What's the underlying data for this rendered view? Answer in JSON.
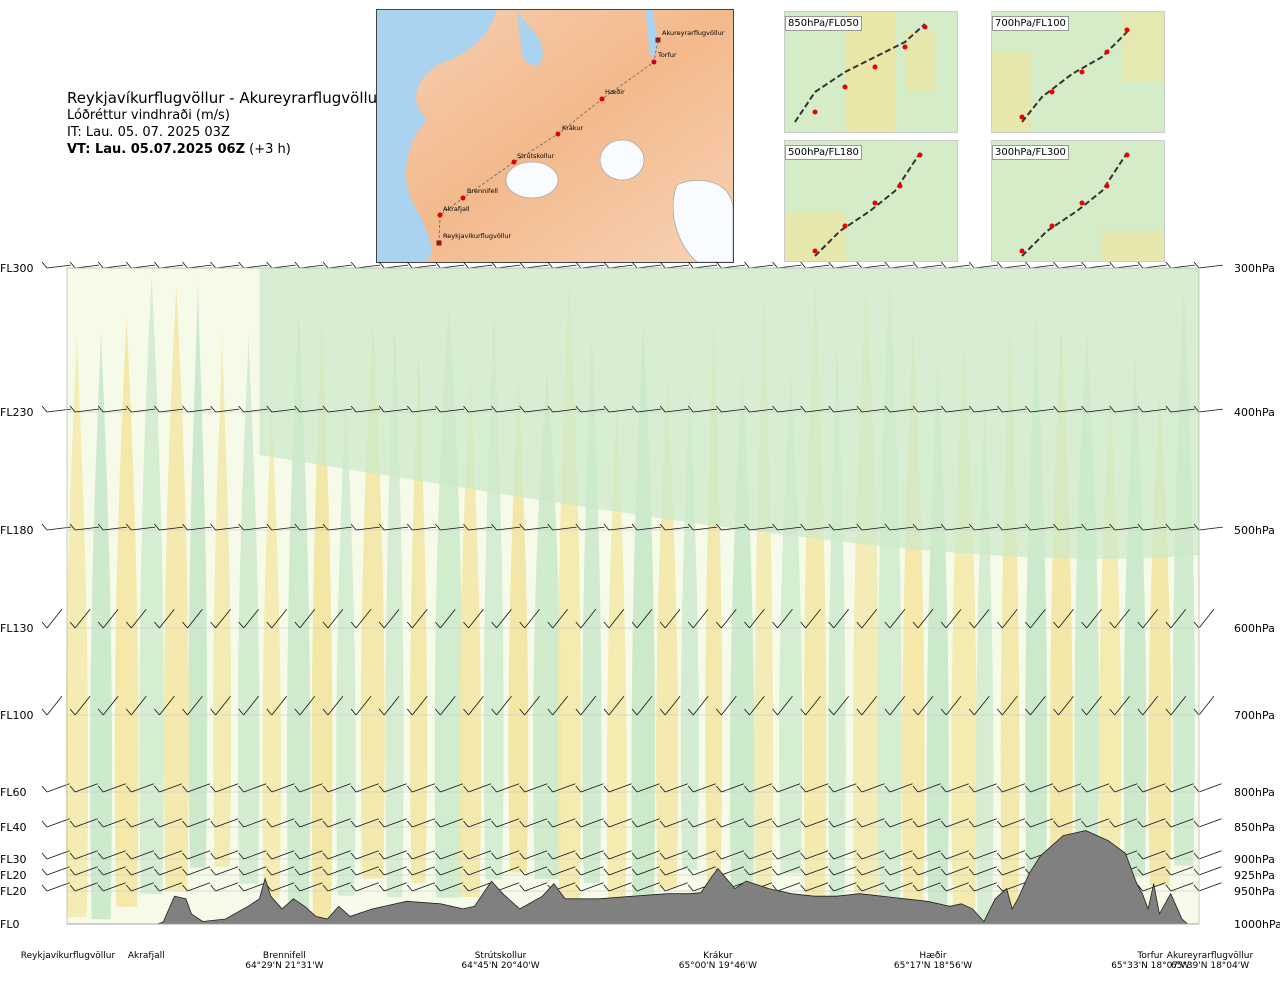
{
  "header": {
    "route": "Reykjavíkurflugvöllur - Akureyrarflugvöllur",
    "product": "Lóðréttur vindhraði (m/s)",
    "issue_time": "IT: Lau. 05. 07. 2025 03Z",
    "valid_prefix": "VT: Lau. 05.07.2025 06Z",
    "valid_offset": "(+3 h)"
  },
  "map": {
    "points": [
      {
        "name": "Akureyrarflugvöllur"
      },
      {
        "name": "Torfur"
      },
      {
        "name": "Hæðir"
      },
      {
        "name": "Krákur"
      },
      {
        "name": "Strútskollur"
      },
      {
        "name": "Brennifell"
      },
      {
        "name": "Akrafjall"
      },
      {
        "name": "Reykjavíkurflugvöllur"
      }
    ]
  },
  "mini_maps": [
    {
      "label": "850hPa/FL050"
    },
    {
      "label": "700hPa/FL100"
    },
    {
      "label": "500hPa/FL180"
    },
    {
      "label": "300hPa/FL300"
    }
  ],
  "chart_data": {
    "type": "heatmap",
    "title": "Lóðréttur vindhraði (m/s)",
    "left_axis": [
      "FL300",
      "FL230",
      "FL180",
      "FL130",
      "FL100",
      "FL60",
      "FL40",
      "FL30",
      "FL20",
      "FL20",
      "FL0"
    ],
    "right_axis": [
      "300hPa",
      "400hPa",
      "500hPa",
      "600hPa",
      "700hPa",
      "800hPa",
      "850hPa",
      "900hPa",
      "925hPa",
      "950hPa",
      "1000hPa"
    ],
    "pressure_levels": [
      300,
      400,
      500,
      600,
      700,
      800,
      850,
      900,
      925,
      950,
      1000
    ],
    "x_range": [
      0,
      1
    ],
    "locations": [
      {
        "name": "Reykjavíkurflugvöllur",
        "coord": "",
        "pos": 0.0
      },
      {
        "name": "Akrafjall",
        "coord": "",
        "pos": 0.07
      },
      {
        "name": "Brennifell",
        "coord": "64°29'N 21°31'W",
        "pos": 0.192
      },
      {
        "name": "Strútskollur",
        "coord": "64°45'N 20°40'W",
        "pos": 0.383
      },
      {
        "name": "Krákur",
        "coord": "65°00'N 19°46'W",
        "pos": 0.575
      },
      {
        "name": "Hæðir",
        "coord": "65°17'N 18°56'W",
        "pos": 0.765
      },
      {
        "name": "Torfur",
        "coord": "65°33'N 18°07'W",
        "pos": 0.957
      },
      {
        "name": "Akureyrarflugvöllur",
        "coord": "65°39'N 18°04'W",
        "pos": 1.0
      }
    ],
    "terrain_profile": [
      [
        0.0,
        0.0
      ],
      [
        0.08,
        0.0
      ],
      [
        0.085,
        0.04
      ],
      [
        0.095,
        0.55
      ],
      [
        0.105,
        0.5
      ],
      [
        0.11,
        0.2
      ],
      [
        0.12,
        0.05
      ],
      [
        0.14,
        0.1
      ],
      [
        0.16,
        0.35
      ],
      [
        0.17,
        0.5
      ],
      [
        0.175,
        0.9
      ],
      [
        0.18,
        0.55
      ],
      [
        0.19,
        0.3
      ],
      [
        0.2,
        0.5
      ],
      [
        0.21,
        0.35
      ],
      [
        0.22,
        0.15
      ],
      [
        0.23,
        0.1
      ],
      [
        0.24,
        0.35
      ],
      [
        0.25,
        0.15
      ],
      [
        0.27,
        0.3
      ],
      [
        0.3,
        0.45
      ],
      [
        0.33,
        0.4
      ],
      [
        0.35,
        0.3
      ],
      [
        0.36,
        0.35
      ],
      [
        0.375,
        0.85
      ],
      [
        0.385,
        0.6
      ],
      [
        0.4,
        0.3
      ],
      [
        0.42,
        0.55
      ],
      [
        0.43,
        0.8
      ],
      [
        0.44,
        0.5
      ],
      [
        0.47,
        0.5
      ],
      [
        0.5,
        0.55
      ],
      [
        0.53,
        0.6
      ],
      [
        0.55,
        0.6
      ],
      [
        0.56,
        0.62
      ],
      [
        0.57,
        0.95
      ],
      [
        0.575,
        1.1
      ],
      [
        0.59,
        0.7
      ],
      [
        0.6,
        0.85
      ],
      [
        0.62,
        0.7
      ],
      [
        0.64,
        0.6
      ],
      [
        0.66,
        0.55
      ],
      [
        0.68,
        0.55
      ],
      [
        0.7,
        0.6
      ],
      [
        0.72,
        0.55
      ],
      [
        0.74,
        0.5
      ],
      [
        0.76,
        0.45
      ],
      [
        0.78,
        0.35
      ],
      [
        0.79,
        0.4
      ],
      [
        0.8,
        0.3
      ],
      [
        0.81,
        0.05
      ],
      [
        0.82,
        0.5
      ],
      [
        0.83,
        0.7
      ],
      [
        0.835,
        0.3
      ],
      [
        0.84,
        0.5
      ],
      [
        0.85,
        1.0
      ],
      [
        0.86,
        1.35
      ],
      [
        0.87,
        1.55
      ],
      [
        0.88,
        1.75
      ],
      [
        0.9,
        1.85
      ],
      [
        0.92,
        1.65
      ],
      [
        0.935,
        1.4
      ],
      [
        0.945,
        0.8
      ],
      [
        0.95,
        0.6
      ],
      [
        0.955,
        0.3
      ],
      [
        0.96,
        0.8
      ],
      [
        0.965,
        0.2
      ],
      [
        0.975,
        0.6
      ],
      [
        0.985,
        0.1
      ],
      [
        0.99,
        0.0
      ],
      [
        1.0,
        0.0
      ]
    ],
    "colors": {
      "positive": "#f3e7a6",
      "negative": "#cce9ca",
      "neutral": "#f6fbe9",
      "terrain": "#808080"
    }
  }
}
